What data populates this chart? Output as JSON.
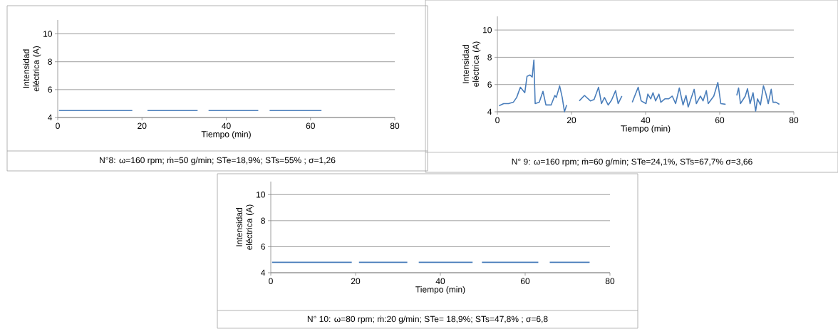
{
  "chart_data": [
    {
      "type": "line",
      "xlabel": "Tiempo (min)",
      "ylabel": "Intensidad eléctrica (A)",
      "annotations": [
        "N°8: ω=160 rpm; ṁ=50 g/min; STe=18,9%; STs=55% ; σ=1,26"
      ],
      "x": [
        0.3,
        17.7,
        19.5,
        21.3,
        33.2,
        34.5,
        35.8,
        47.6,
        49,
        50.3,
        62.6
      ],
      "values": [
        4.5,
        4.5,
        null,
        4.5,
        4.5,
        null,
        4.5,
        4.5,
        null,
        4.5,
        4.5
      ],
      "color": "#4a7ebb",
      "xlim": [
        0,
        80
      ],
      "ylim": [
        4,
        11
      ],
      "xticks": [
        0,
        20,
        40,
        60,
        80
      ],
      "yticks": [
        4,
        6,
        8,
        10
      ],
      "grid": "y"
    },
    {
      "type": "line",
      "xlabel": "Tiempo (min)",
      "ylabel": "Intensidad eléctrica (A)",
      "annotations": [
        "N° 9: ω=160 rpm; ṁ=60 g/min;  STe=24,1%, STs=67,7% σ=3,66"
      ],
      "x": [
        0.45,
        1.7,
        3,
        4.3,
        5.2,
        6.2,
        6.8,
        7.4,
        8.0,
        8.8,
        9.4,
        9.85,
        10.2,
        11.3,
        12.3,
        13.1,
        14.5,
        15.5,
        15.9,
        16.8,
        17.5,
        18.1,
        18.7,
        20.4,
        22.1,
        23.5,
        25.1,
        26.1,
        27.3,
        28.1,
        28.9,
        29.9,
        30.8,
        31.9,
        32.6,
        33.6,
        35,
        36.4,
        38.0,
        38.8,
        40.1,
        40.6,
        41.4,
        42.0,
        42.7,
        43.6,
        44.1,
        45.2,
        46.2,
        47.2,
        48.1,
        49.1,
        50.1,
        50.9,
        51.5,
        53.1,
        53.7,
        54.8,
        55.5,
        56.4,
        56.9,
        58.4,
        59.5,
        60.3,
        61.6,
        63,
        64.6,
        65.1,
        65.6,
        66.9,
        67.5,
        68.2,
        69.0,
        69.7,
        70.2,
        71.0,
        71.8,
        72.4,
        73.1,
        73.9,
        74.4,
        75.2,
        76.1
      ],
      "values": [
        4.44,
        4.6,
        4.6,
        4.7,
        5.05,
        5.8,
        5.6,
        5.4,
        6.6,
        6.7,
        6.55,
        7.8,
        4.6,
        4.7,
        5.5,
        4.5,
        4.5,
        5.2,
        5.05,
        5.9,
        5.05,
        4.0,
        4.5,
        null,
        4.8,
        5.2,
        4.8,
        4.9,
        5.8,
        4.6,
        5.05,
        4.5,
        4.85,
        5.55,
        4.6,
        5.15,
        null,
        4.7,
        5.8,
        4.8,
        4.6,
        5.3,
        4.95,
        5.4,
        4.8,
        5.3,
        4.7,
        4.95,
        4.95,
        5.15,
        4.6,
        5.75,
        4.5,
        5.2,
        4.35,
        5.65,
        4.6,
        5.15,
        4.8,
        5.55,
        4.6,
        5.15,
        6.15,
        4.6,
        4.55,
        null,
        5.2,
        5.75,
        4.6,
        5.15,
        5.7,
        4.6,
        5.4,
        4.05,
        4.95,
        4.5,
        5.9,
        5.4,
        4.6,
        5.65,
        4.7,
        4.7,
        4.55
      ],
      "color": "#4a7ebb",
      "xlim": [
        0,
        80
      ],
      "ylim": [
        4,
        11
      ],
      "xticks": [
        0,
        20,
        40,
        60,
        80
      ],
      "yticks": [
        4,
        6,
        8,
        10
      ],
      "grid": "y"
    },
    {
      "type": "line",
      "xlabel": "Tiempo (min)",
      "ylabel": "Intensidad eléctrica (A)",
      "annotations": [
        "N° 10: ω=80 rpm; ṁ:20 g/min; STe= 18,9%; STs=47,8% ; σ=6,8"
      ],
      "x": [
        0.3,
        19.1,
        20,
        20.8,
        32.2,
        33.5,
        34.9,
        47.6,
        48.7,
        49.8,
        63.1,
        64.5,
        65.8,
        75.2
      ],
      "values": [
        4.8,
        4.8,
        null,
        4.8,
        4.8,
        null,
        4.8,
        4.8,
        null,
        4.8,
        4.8,
        null,
        4.8,
        4.8
      ],
      "color": "#4a7ebb",
      "xlim": [
        0,
        80
      ],
      "ylim": [
        4,
        11
      ],
      "xticks": [
        0,
        20,
        40,
        60,
        80
      ],
      "yticks": [
        4,
        6,
        8,
        10
      ],
      "grid": "y"
    }
  ]
}
